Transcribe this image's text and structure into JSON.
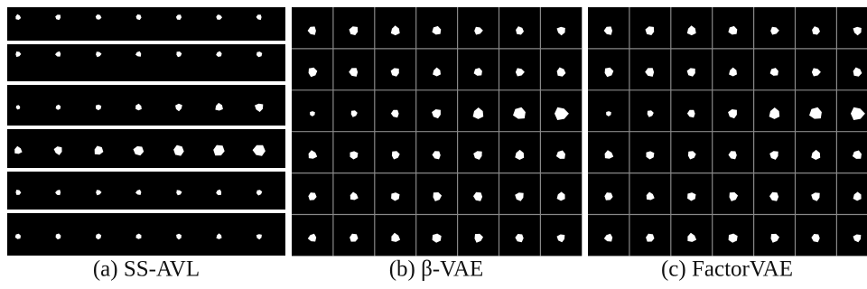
{
  "figure": {
    "captions": [
      "(a) SS-AVL",
      "(b) β-VAE",
      "(c) FactorVAE"
    ]
  }
}
